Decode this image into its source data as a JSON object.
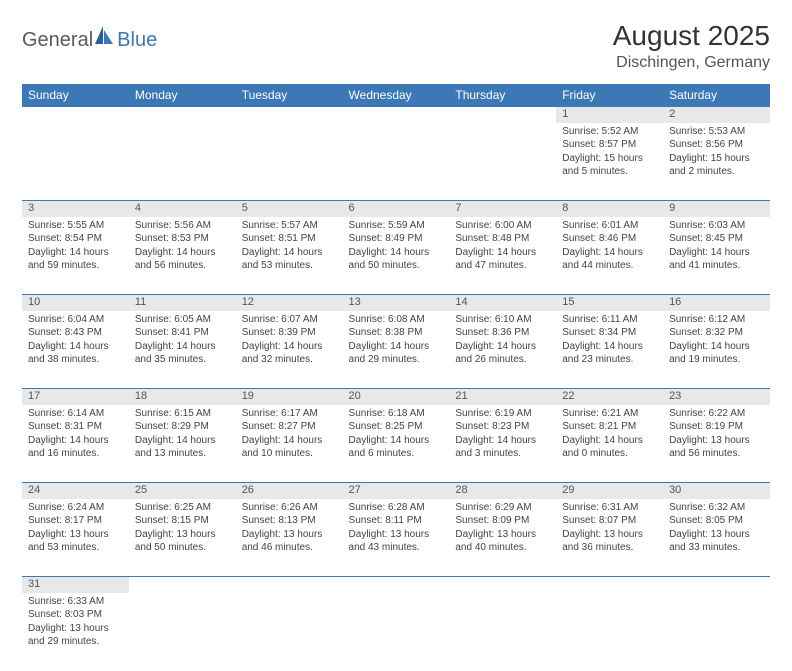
{
  "logo": {
    "word1": "General",
    "word2": "Blue"
  },
  "title": "August 2025",
  "subtitle": "Dischingen, Germany",
  "colors": {
    "header_bg": "#3b78b5",
    "header_text": "#ffffff",
    "daynum_bg": "#e8e8e8",
    "border": "#3b78b5",
    "text": "#444444",
    "logo_gray": "#5a5a5a",
    "logo_blue": "#3b78b5"
  },
  "day_headers": [
    "Sunday",
    "Monday",
    "Tuesday",
    "Wednesday",
    "Thursday",
    "Friday",
    "Saturday"
  ],
  "weeks": [
    [
      null,
      null,
      null,
      null,
      null,
      {
        "n": "1",
        "sunrise": "5:52 AM",
        "sunset": "8:57 PM",
        "daylight": "15 hours and 5 minutes."
      },
      {
        "n": "2",
        "sunrise": "5:53 AM",
        "sunset": "8:56 PM",
        "daylight": "15 hours and 2 minutes."
      }
    ],
    [
      {
        "n": "3",
        "sunrise": "5:55 AM",
        "sunset": "8:54 PM",
        "daylight": "14 hours and 59 minutes."
      },
      {
        "n": "4",
        "sunrise": "5:56 AM",
        "sunset": "8:53 PM",
        "daylight": "14 hours and 56 minutes."
      },
      {
        "n": "5",
        "sunrise": "5:57 AM",
        "sunset": "8:51 PM",
        "daylight": "14 hours and 53 minutes."
      },
      {
        "n": "6",
        "sunrise": "5:59 AM",
        "sunset": "8:49 PM",
        "daylight": "14 hours and 50 minutes."
      },
      {
        "n": "7",
        "sunrise": "6:00 AM",
        "sunset": "8:48 PM",
        "daylight": "14 hours and 47 minutes."
      },
      {
        "n": "8",
        "sunrise": "6:01 AM",
        "sunset": "8:46 PM",
        "daylight": "14 hours and 44 minutes."
      },
      {
        "n": "9",
        "sunrise": "6:03 AM",
        "sunset": "8:45 PM",
        "daylight": "14 hours and 41 minutes."
      }
    ],
    [
      {
        "n": "10",
        "sunrise": "6:04 AM",
        "sunset": "8:43 PM",
        "daylight": "14 hours and 38 minutes."
      },
      {
        "n": "11",
        "sunrise": "6:05 AM",
        "sunset": "8:41 PM",
        "daylight": "14 hours and 35 minutes."
      },
      {
        "n": "12",
        "sunrise": "6:07 AM",
        "sunset": "8:39 PM",
        "daylight": "14 hours and 32 minutes."
      },
      {
        "n": "13",
        "sunrise": "6:08 AM",
        "sunset": "8:38 PM",
        "daylight": "14 hours and 29 minutes."
      },
      {
        "n": "14",
        "sunrise": "6:10 AM",
        "sunset": "8:36 PM",
        "daylight": "14 hours and 26 minutes."
      },
      {
        "n": "15",
        "sunrise": "6:11 AM",
        "sunset": "8:34 PM",
        "daylight": "14 hours and 23 minutes."
      },
      {
        "n": "16",
        "sunrise": "6:12 AM",
        "sunset": "8:32 PM",
        "daylight": "14 hours and 19 minutes."
      }
    ],
    [
      {
        "n": "17",
        "sunrise": "6:14 AM",
        "sunset": "8:31 PM",
        "daylight": "14 hours and 16 minutes."
      },
      {
        "n": "18",
        "sunrise": "6:15 AM",
        "sunset": "8:29 PM",
        "daylight": "14 hours and 13 minutes."
      },
      {
        "n": "19",
        "sunrise": "6:17 AM",
        "sunset": "8:27 PM",
        "daylight": "14 hours and 10 minutes."
      },
      {
        "n": "20",
        "sunrise": "6:18 AM",
        "sunset": "8:25 PM",
        "daylight": "14 hours and 6 minutes."
      },
      {
        "n": "21",
        "sunrise": "6:19 AM",
        "sunset": "8:23 PM",
        "daylight": "14 hours and 3 minutes."
      },
      {
        "n": "22",
        "sunrise": "6:21 AM",
        "sunset": "8:21 PM",
        "daylight": "14 hours and 0 minutes."
      },
      {
        "n": "23",
        "sunrise": "6:22 AM",
        "sunset": "8:19 PM",
        "daylight": "13 hours and 56 minutes."
      }
    ],
    [
      {
        "n": "24",
        "sunrise": "6:24 AM",
        "sunset": "8:17 PM",
        "daylight": "13 hours and 53 minutes."
      },
      {
        "n": "25",
        "sunrise": "6:25 AM",
        "sunset": "8:15 PM",
        "daylight": "13 hours and 50 minutes."
      },
      {
        "n": "26",
        "sunrise": "6:26 AM",
        "sunset": "8:13 PM",
        "daylight": "13 hours and 46 minutes."
      },
      {
        "n": "27",
        "sunrise": "6:28 AM",
        "sunset": "8:11 PM",
        "daylight": "13 hours and 43 minutes."
      },
      {
        "n": "28",
        "sunrise": "6:29 AM",
        "sunset": "8:09 PM",
        "daylight": "13 hours and 40 minutes."
      },
      {
        "n": "29",
        "sunrise": "6:31 AM",
        "sunset": "8:07 PM",
        "daylight": "13 hours and 36 minutes."
      },
      {
        "n": "30",
        "sunrise": "6:32 AM",
        "sunset": "8:05 PM",
        "daylight": "13 hours and 33 minutes."
      }
    ],
    [
      {
        "n": "31",
        "sunrise": "6:33 AM",
        "sunset": "8:03 PM",
        "daylight": "13 hours and 29 minutes."
      },
      null,
      null,
      null,
      null,
      null,
      null
    ]
  ],
  "labels": {
    "sunrise": "Sunrise: ",
    "sunset": "Sunset: ",
    "daylight": "Daylight: "
  }
}
